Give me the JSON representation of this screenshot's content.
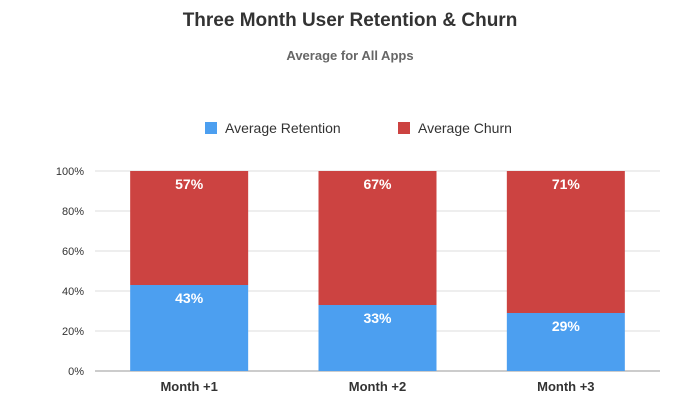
{
  "chart_data": {
    "type": "bar",
    "stacked": true,
    "title": "Three Month User Retention & Churn",
    "subtitle": "Average for All Apps",
    "categories": [
      "Month +1",
      "Month +2",
      "Month +3"
    ],
    "series": [
      {
        "name": "Average Retention",
        "values": [
          43,
          33,
          29
        ],
        "labels": [
          "43%",
          "33%",
          "29%"
        ],
        "color": "#4c9ff0"
      },
      {
        "name": "Average Churn",
        "values": [
          57,
          67,
          71
        ],
        "labels": [
          "57%",
          "67%",
          "71%"
        ],
        "color": "#cc4341"
      }
    ],
    "ylim": [
      0,
      100
    ],
    "yticks": [
      "0%",
      "20%",
      "40%",
      "60%",
      "80%",
      "100%"
    ],
    "grid": true,
    "legend": "top-center"
  }
}
